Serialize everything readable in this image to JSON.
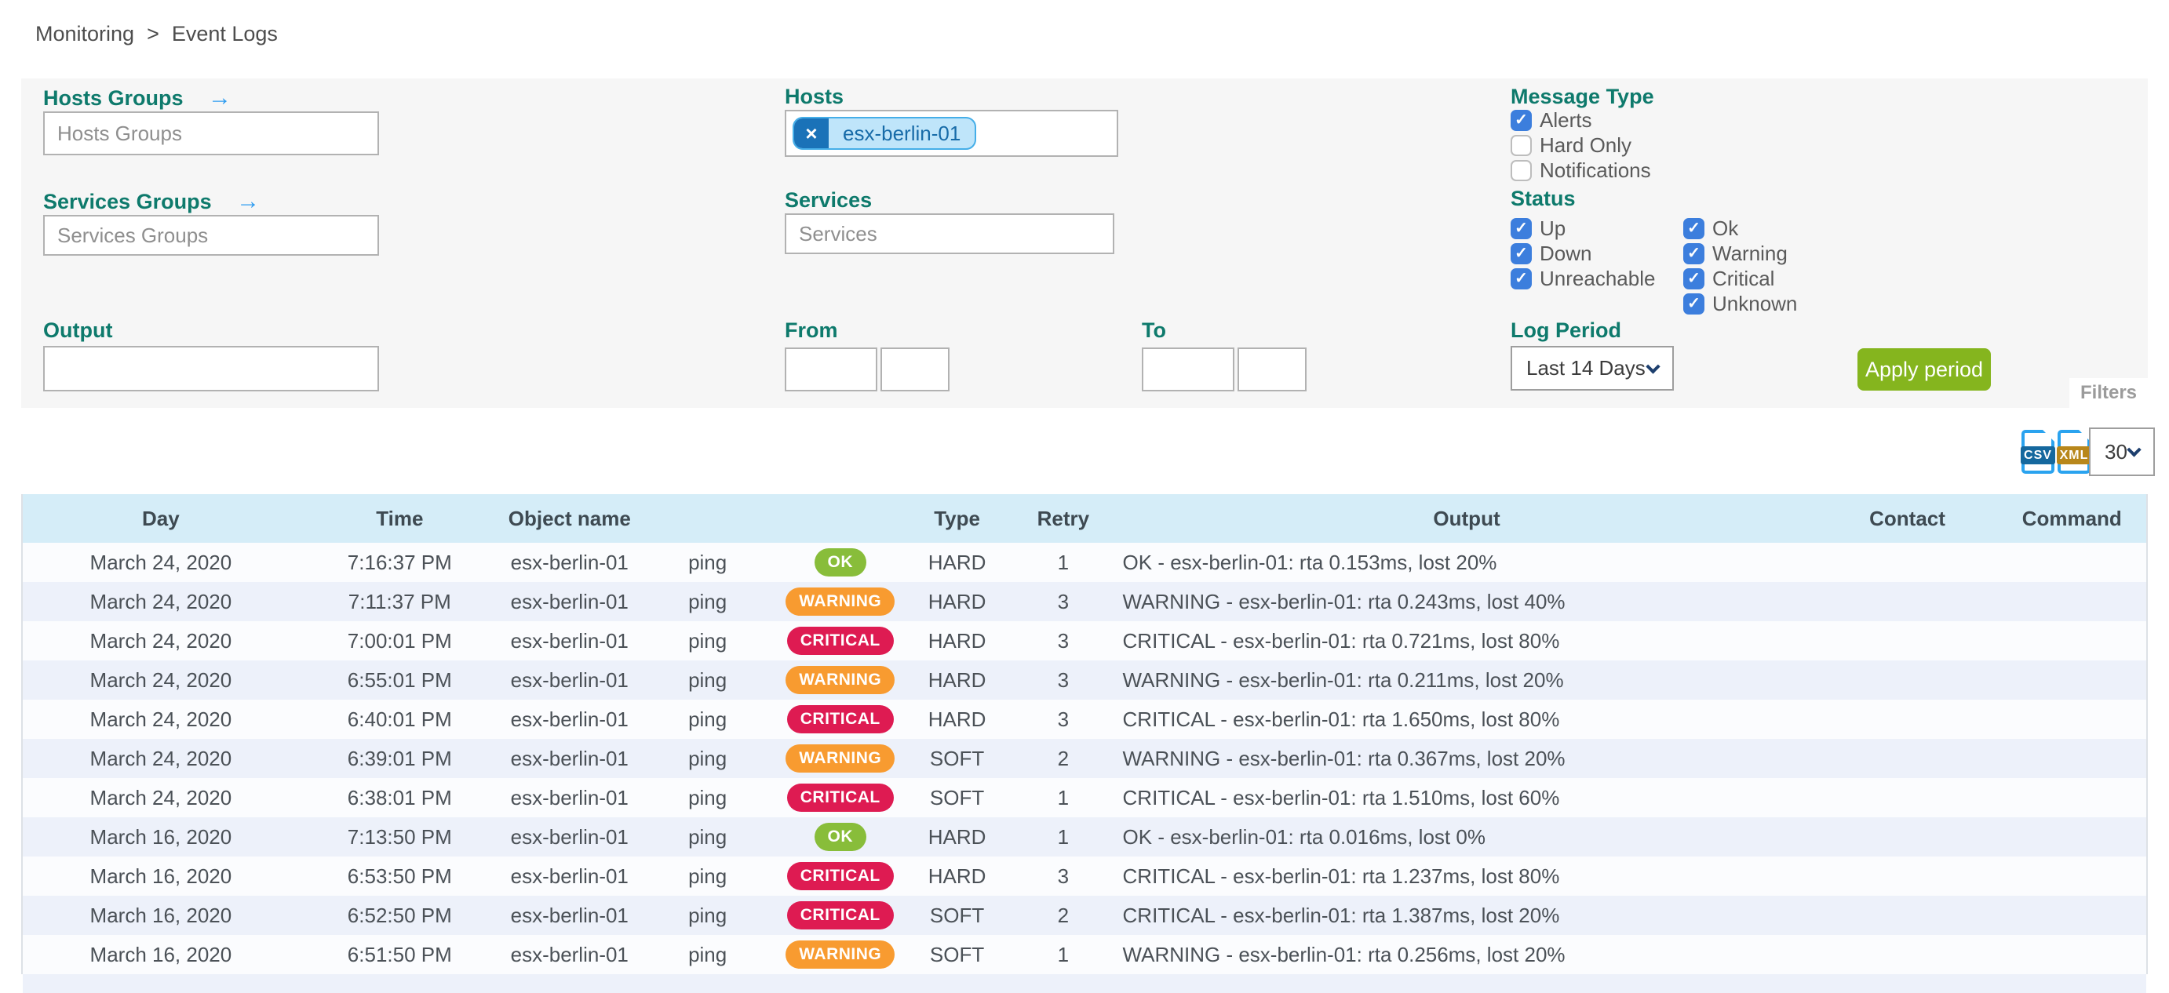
{
  "breadcrumb": {
    "section": "Monitoring",
    "separator": ">",
    "page": "Event Logs"
  },
  "filters": {
    "panel_label": "Filters",
    "hosts_groups": {
      "label": "Hosts Groups",
      "arrow_icon": "right-arrow",
      "placeholder": "Hosts Groups",
      "value": ""
    },
    "services_groups": {
      "label": "Services Groups",
      "arrow_icon": "right-arrow",
      "placeholder": "Services Groups",
      "value": ""
    },
    "hosts": {
      "label": "Hosts",
      "chips": [
        {
          "text": "esx-berlin-01",
          "remove_icon": "×"
        }
      ]
    },
    "services": {
      "label": "Services",
      "placeholder": "Services",
      "value": ""
    },
    "output": {
      "label": "Output",
      "value": ""
    },
    "from": {
      "label": "From",
      "date_value": "",
      "time_value": ""
    },
    "to": {
      "label": "To",
      "date_value": "",
      "time_value": ""
    },
    "message_type": {
      "label": "Message Type",
      "options": [
        {
          "label": "Alerts",
          "checked": true
        },
        {
          "label": "Hard Only",
          "checked": false
        },
        {
          "label": "Notifications",
          "checked": false
        }
      ]
    },
    "status": {
      "label": "Status",
      "host_options": [
        {
          "label": "Up",
          "checked": true
        },
        {
          "label": "Down",
          "checked": true
        },
        {
          "label": "Unreachable",
          "checked": true
        }
      ],
      "service_options": [
        {
          "label": "Ok",
          "checked": true
        },
        {
          "label": "Warning",
          "checked": true
        },
        {
          "label": "Critical",
          "checked": true
        },
        {
          "label": "Unknown",
          "checked": true
        }
      ]
    },
    "log_period": {
      "label": "Log Period",
      "selected": "Last 14 Days"
    },
    "apply_button": "Apply period"
  },
  "toolbar": {
    "csv_label": "CSV",
    "xml_label": "XML",
    "rows_per_page": "30"
  },
  "table": {
    "headers": [
      "Day",
      "Time",
      "Object name",
      "",
      "",
      "Type",
      "Retry",
      "Output",
      "Contact",
      "Command"
    ],
    "rows": [
      {
        "day": "March 24, 2020",
        "time": "7:16:37 PM",
        "object": "esx-berlin-01",
        "service": "ping",
        "status": "OK",
        "type": "HARD",
        "retry": "1",
        "output": "OK - esx-berlin-01: rta 0.153ms, lost 20%",
        "contact": "",
        "command": ""
      },
      {
        "day": "March 24, 2020",
        "time": "7:11:37 PM",
        "object": "esx-berlin-01",
        "service": "ping",
        "status": "WARNING",
        "type": "HARD",
        "retry": "3",
        "output": "WARNING - esx-berlin-01: rta 0.243ms, lost 40%",
        "contact": "",
        "command": ""
      },
      {
        "day": "March 24, 2020",
        "time": "7:00:01 PM",
        "object": "esx-berlin-01",
        "service": "ping",
        "status": "CRITICAL",
        "type": "HARD",
        "retry": "3",
        "output": "CRITICAL - esx-berlin-01: rta 0.721ms, lost 80%",
        "contact": "",
        "command": ""
      },
      {
        "day": "March 24, 2020",
        "time": "6:55:01 PM",
        "object": "esx-berlin-01",
        "service": "ping",
        "status": "WARNING",
        "type": "HARD",
        "retry": "3",
        "output": "WARNING - esx-berlin-01: rta 0.211ms, lost 20%",
        "contact": "",
        "command": ""
      },
      {
        "day": "March 24, 2020",
        "time": "6:40:01 PM",
        "object": "esx-berlin-01",
        "service": "ping",
        "status": "CRITICAL",
        "type": "HARD",
        "retry": "3",
        "output": "CRITICAL - esx-berlin-01: rta 1.650ms, lost 80%",
        "contact": "",
        "command": ""
      },
      {
        "day": "March 24, 2020",
        "time": "6:39:01 PM",
        "object": "esx-berlin-01",
        "service": "ping",
        "status": "WARNING",
        "type": "SOFT",
        "retry": "2",
        "output": "WARNING - esx-berlin-01: rta 0.367ms, lost 20%",
        "contact": "",
        "command": ""
      },
      {
        "day": "March 24, 2020",
        "time": "6:38:01 PM",
        "object": "esx-berlin-01",
        "service": "ping",
        "status": "CRITICAL",
        "type": "SOFT",
        "retry": "1",
        "output": "CRITICAL - esx-berlin-01: rta 1.510ms, lost 60%",
        "contact": "",
        "command": ""
      },
      {
        "day": "March 16, 2020",
        "time": "7:13:50 PM",
        "object": "esx-berlin-01",
        "service": "ping",
        "status": "OK",
        "type": "HARD",
        "retry": "1",
        "output": "OK - esx-berlin-01: rta 0.016ms, lost 0%",
        "contact": "",
        "command": ""
      },
      {
        "day": "March 16, 2020",
        "time": "6:53:50 PM",
        "object": "esx-berlin-01",
        "service": "ping",
        "status": "CRITICAL",
        "type": "HARD",
        "retry": "3",
        "output": "CRITICAL - esx-berlin-01: rta 1.237ms, lost 80%",
        "contact": "",
        "command": ""
      },
      {
        "day": "March 16, 2020",
        "time": "6:52:50 PM",
        "object": "esx-berlin-01",
        "service": "ping",
        "status": "CRITICAL",
        "type": "SOFT",
        "retry": "2",
        "output": "CRITICAL - esx-berlin-01: rta 1.387ms, lost 20%",
        "contact": "",
        "command": ""
      },
      {
        "day": "March 16, 2020",
        "time": "6:51:50 PM",
        "object": "esx-berlin-01",
        "service": "ping",
        "status": "WARNING",
        "type": "SOFT",
        "retry": "1",
        "output": "WARNING - esx-berlin-01: rta 0.256ms, lost 20%",
        "contact": "",
        "command": ""
      }
    ]
  },
  "colors": {
    "label_teal": "#0e7a6c",
    "arrow_blue": "#2e9cf0",
    "checkbox_blue": "#3c7edd",
    "chip_bg": "#bfe5fa",
    "chip_border": "#45aee8",
    "chip_remove_bg": "#1a72b8",
    "apply_green": "#85b51e",
    "header_bg": "#d5edf8",
    "row_alt_bg": "#edf1fa",
    "badge_ok": "#88bd3a",
    "badge_warning": "#f89b30",
    "badge_critical": "#de1b52",
    "csv_band": "#15689e",
    "xml_band": "#b8871b"
  }
}
